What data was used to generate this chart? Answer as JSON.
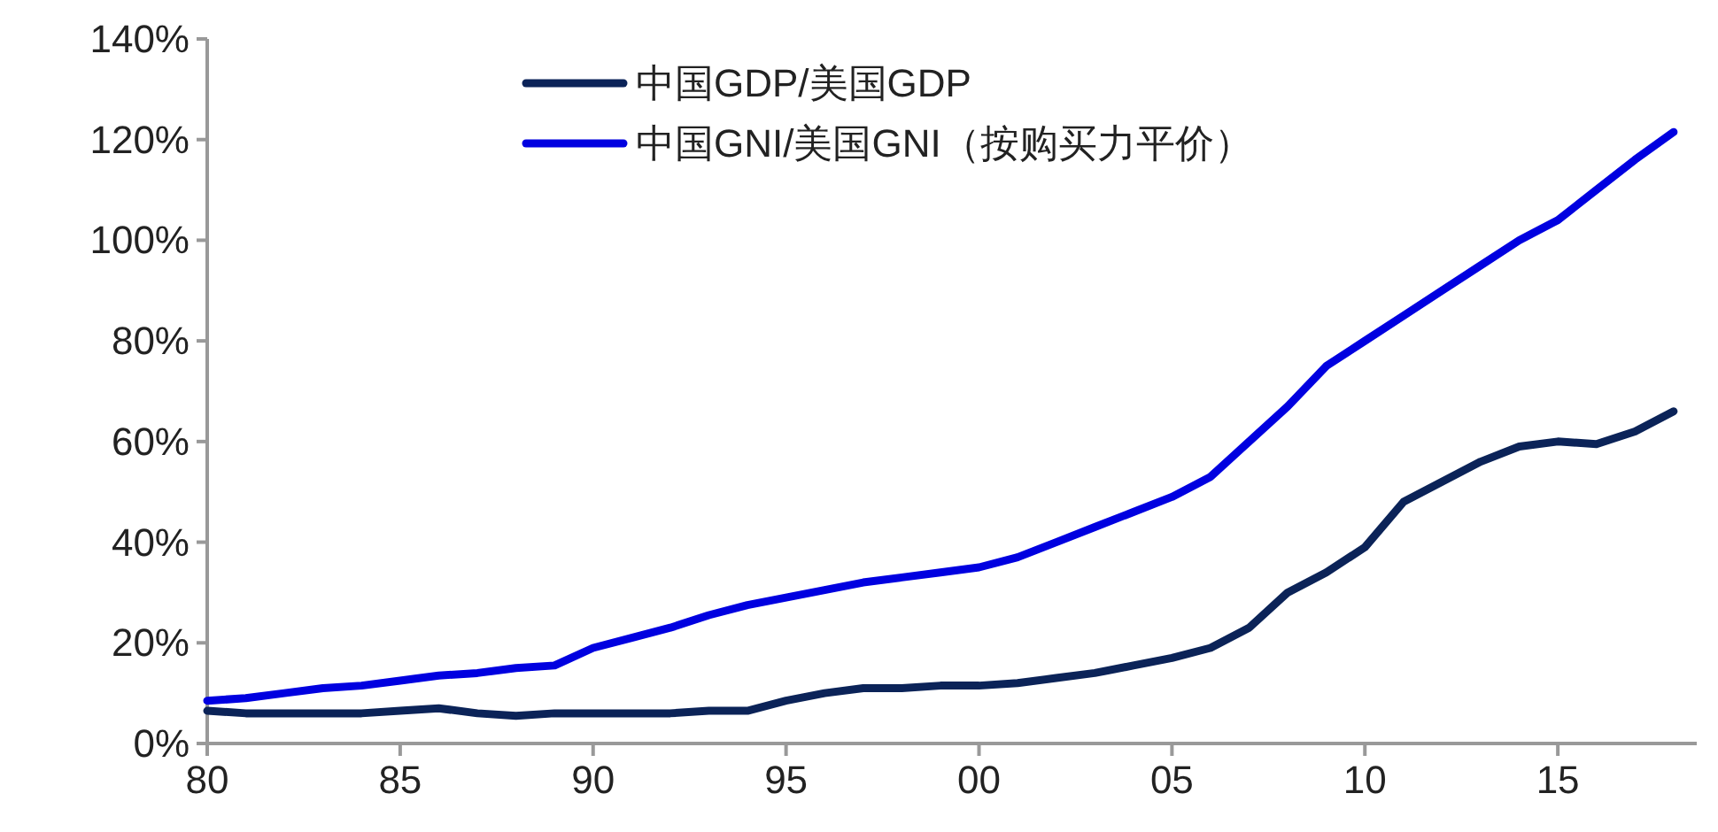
{
  "chart_data": {
    "type": "line",
    "x": [
      1980,
      1981,
      1982,
      1983,
      1984,
      1985,
      1986,
      1987,
      1988,
      1989,
      1990,
      1991,
      1992,
      1993,
      1994,
      1995,
      1996,
      1997,
      1998,
      1999,
      2000,
      2001,
      2002,
      2003,
      2004,
      2005,
      2006,
      2007,
      2008,
      2009,
      2010,
      2011,
      2012,
      2013,
      2014,
      2015,
      2016,
      2017,
      2018
    ],
    "series": [
      {
        "name": "中国GDP/美国GDP",
        "color": "#0b2358",
        "values": [
          6.5,
          6,
          6,
          6,
          6,
          6.5,
          7,
          6,
          5.5,
          6,
          6,
          6,
          6,
          6.5,
          6.5,
          8.5,
          10,
          11,
          11,
          11.5,
          11.5,
          12,
          13,
          14,
          15.5,
          17,
          19,
          23,
          30,
          34,
          39,
          48,
          52,
          56,
          59,
          60,
          59.5,
          62,
          66
        ]
      },
      {
        "name": "中国GNI/美国GNI（按购买力平价）",
        "color": "#0000e0",
        "values": [
          8.5,
          9,
          10,
          11,
          11.5,
          12.5,
          13.5,
          14,
          15,
          15.5,
          19,
          21,
          23,
          25.5,
          27.5,
          29,
          30.5,
          32,
          33,
          34,
          35,
          37,
          40,
          43,
          46,
          49,
          53,
          60,
          67,
          75,
          80,
          85,
          90,
          95,
          100,
          104,
          110,
          116,
          121.5
        ]
      }
    ],
    "xlim": [
      1980,
      2018.6
    ],
    "xticks": [
      {
        "value": 1980,
        "label": "80"
      },
      {
        "value": 1985,
        "label": "85"
      },
      {
        "value": 1990,
        "label": "90"
      },
      {
        "value": 1995,
        "label": "95"
      },
      {
        "value": 2000,
        "label": "00"
      },
      {
        "value": 2005,
        "label": "05"
      },
      {
        "value": 2010,
        "label": "10"
      },
      {
        "value": 2015,
        "label": "15"
      }
    ],
    "ylim": [
      0,
      140
    ],
    "yticks": [
      {
        "value": 0,
        "label": "0%"
      },
      {
        "value": 20,
        "label": "20%"
      },
      {
        "value": 40,
        "label": "40%"
      },
      {
        "value": 60,
        "label": "60%"
      },
      {
        "value": 80,
        "label": "80%"
      },
      {
        "value": 100,
        "label": "100%"
      },
      {
        "value": 120,
        "label": "120%"
      },
      {
        "value": 140,
        "label": "140%"
      }
    ],
    "grid": false,
    "legend": "top left",
    "line_style": "solid"
  }
}
